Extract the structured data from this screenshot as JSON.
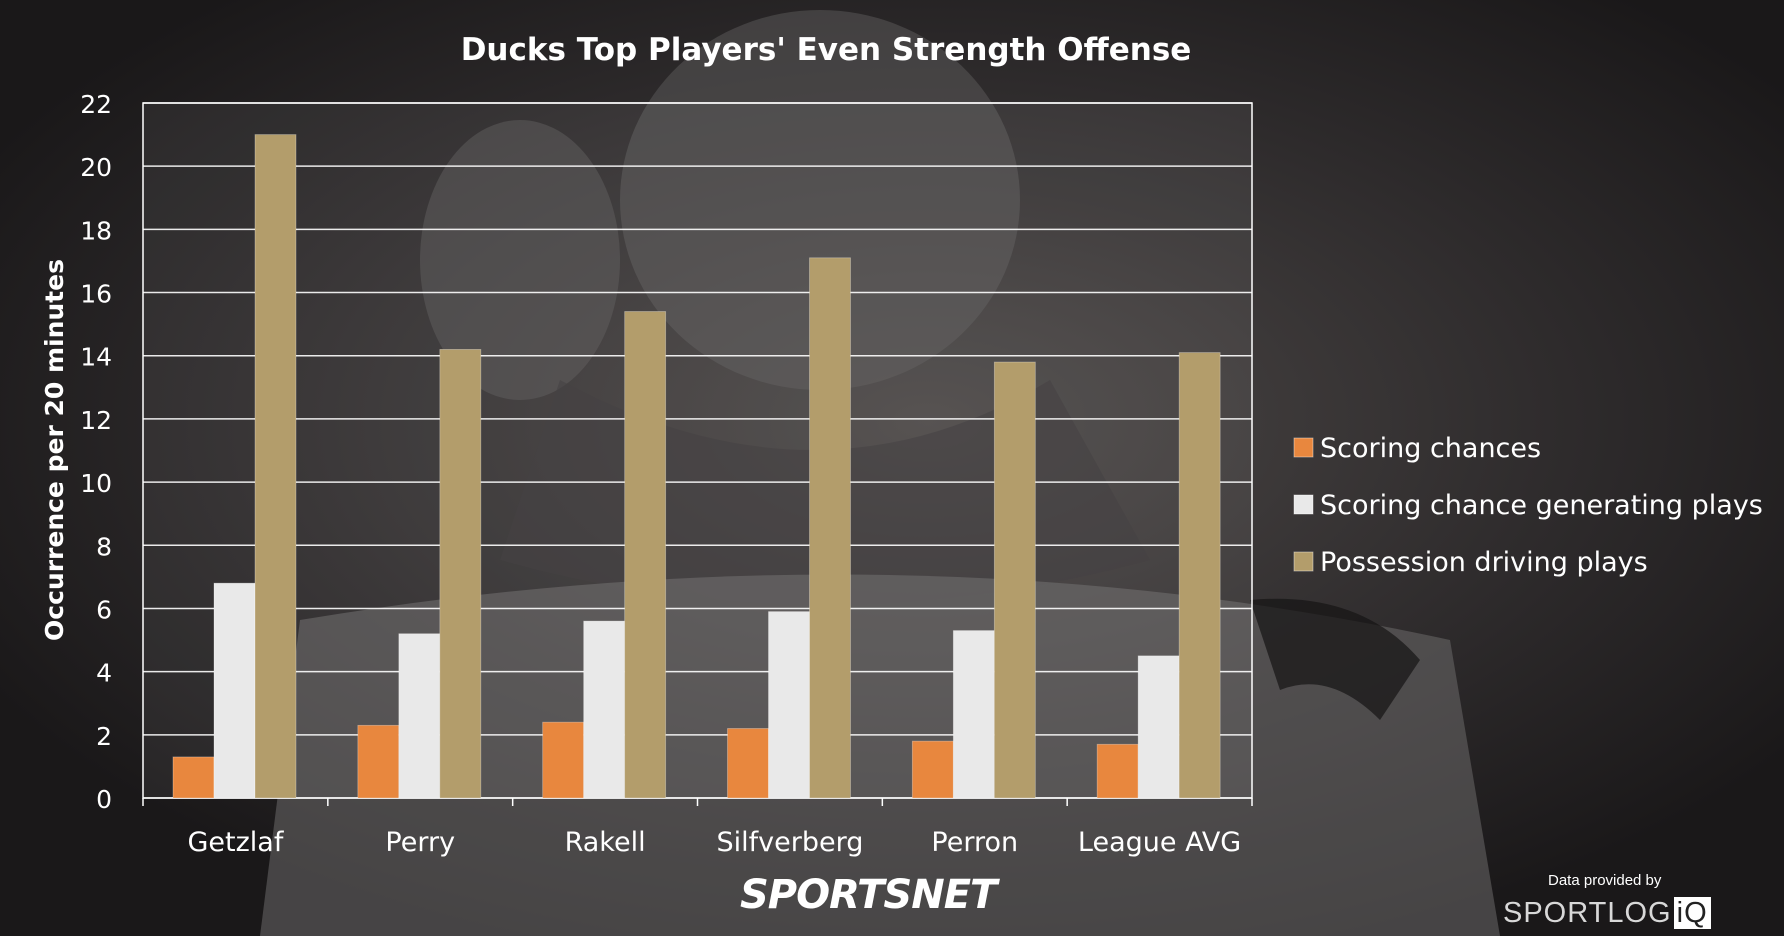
{
  "chart_data": {
    "type": "bar",
    "title": "Ducks Top Players' Even Strength Offense",
    "ylabel": "Occurrence per 20 minutes",
    "xlabel": "",
    "ylim": [
      0,
      22
    ],
    "yticks": [
      0,
      2,
      4,
      6,
      8,
      10,
      12,
      14,
      16,
      18,
      20,
      22
    ],
    "grid": true,
    "legend_position": "right",
    "categories": [
      "Getzlaf",
      "Perry",
      "Rakell",
      "Silfverberg",
      "Perron",
      "League AVG"
    ],
    "series": [
      {
        "name": "Scoring chances",
        "color": "#e8873e",
        "values": [
          1.3,
          2.3,
          2.4,
          2.2,
          1.8,
          1.7
        ]
      },
      {
        "name": "Scoring chance generating plays",
        "color": "#e9e9e9",
        "values": [
          6.8,
          5.2,
          5.6,
          5.9,
          5.3,
          4.5
        ]
      },
      {
        "name": "Possession driving plays",
        "color": "#b39d6b",
        "values": [
          21.0,
          14.2,
          15.4,
          17.1,
          13.8,
          14.1
        ]
      }
    ]
  },
  "branding": {
    "sportsnet": "SPORTSNET",
    "provided_by": "Data provided by",
    "sportlogiq_main": "SPORTLOG",
    "sportlogiq_mark": "iQ"
  }
}
